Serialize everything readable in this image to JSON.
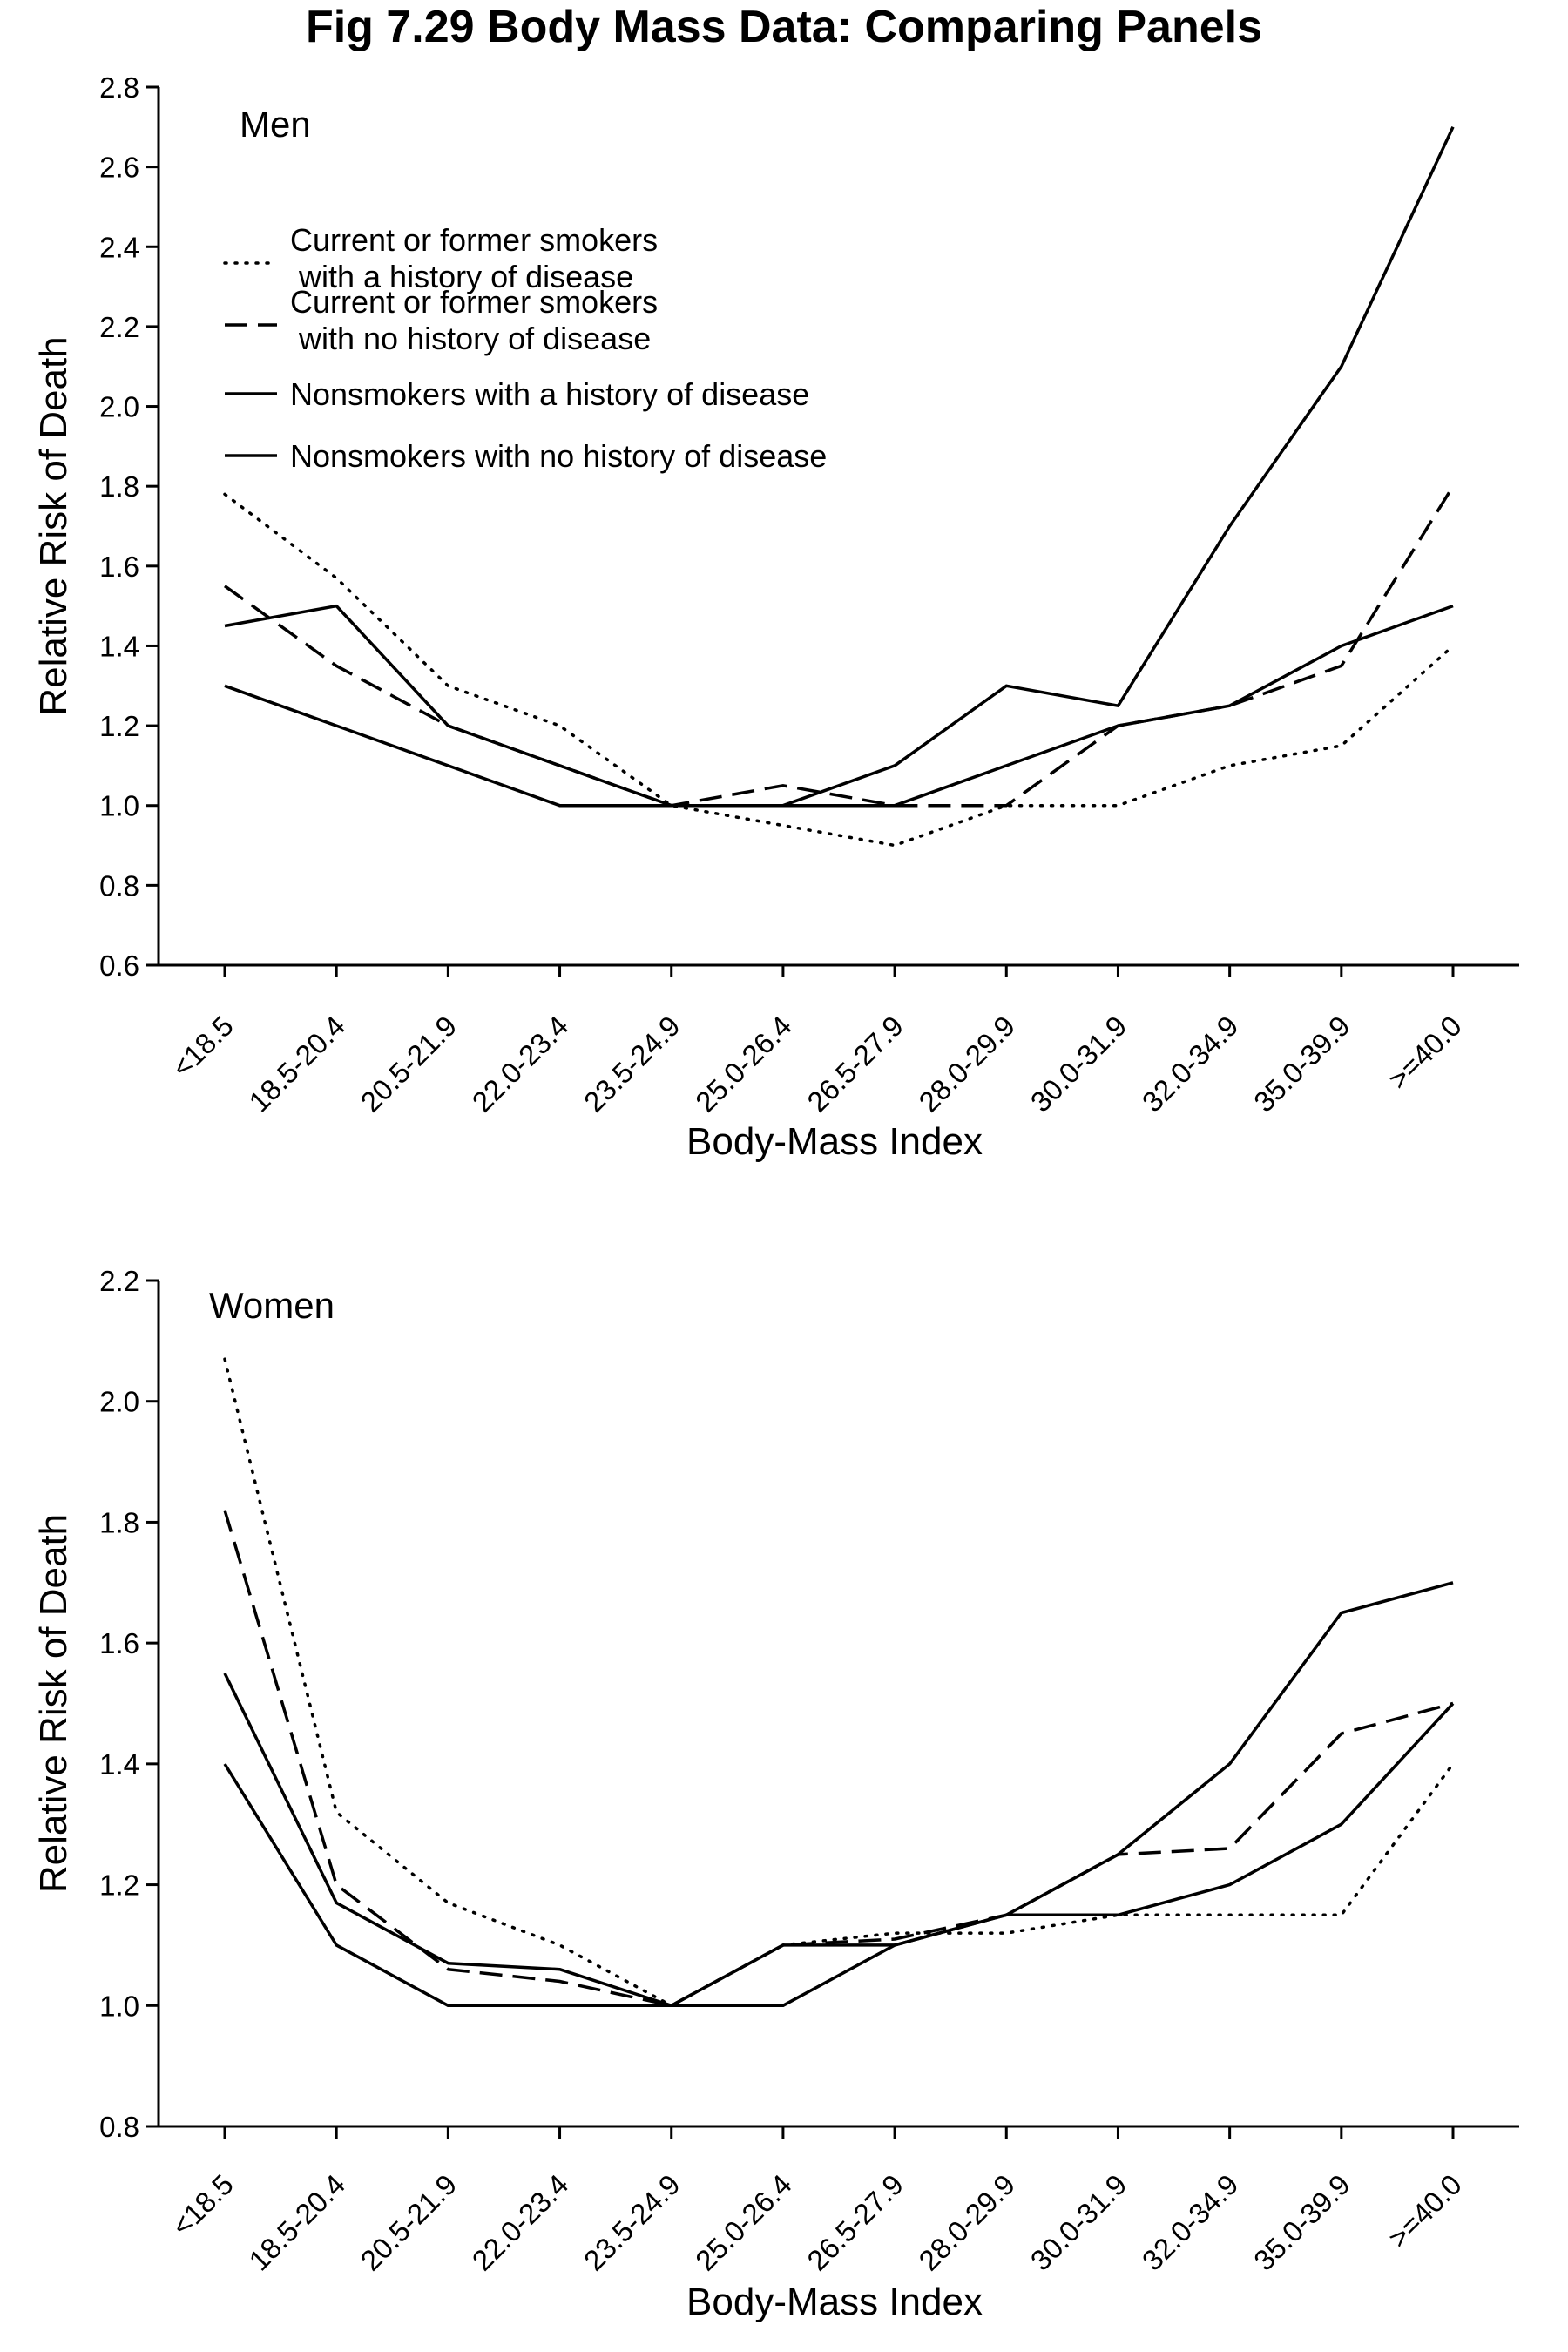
{
  "figure": {
    "title": "Fig 7.29 Body Mass Data: Comparing Panels"
  },
  "chart_data": [
    {
      "type": "line",
      "panel_label": "Men",
      "xlabel": "Body-Mass Index",
      "ylabel": "Relative Risk of Death",
      "categories": [
        "<18.5",
        "18.5-20.4",
        "20.5-21.9",
        "22.0-23.4",
        "23.5-24.9",
        "25.0-26.4",
        "26.5-27.9",
        "28.0-29.9",
        "30.0-31.9",
        "32.0-34.9",
        "35.0-39.9",
        ">=40.0"
      ],
      "ylim": [
        0.6,
        2.8
      ],
      "yticks": [
        "0.6",
        "0.8",
        "1.0",
        "1.2",
        "1.4",
        "1.6",
        "1.8",
        "2.0",
        "2.2",
        "2.4",
        "2.6",
        "2.8"
      ],
      "grid": false,
      "legend": {
        "placement": "top-left",
        "entries": [
          {
            "line1": "Current or former smokers",
            "line2": "with a history of disease",
            "style": "dotted"
          },
          {
            "line1": "Current or former smokers",
            "line2": "with no history of disease",
            "style": "dashed"
          },
          {
            "line1": "Nonsmokers with a history of disease",
            "line2": "",
            "style": "solid"
          },
          {
            "line1": "Nonsmokers with no history of disease",
            "line2": "",
            "style": "solid"
          }
        ]
      },
      "series": [
        {
          "style": "dotted",
          "values": [
            1.78,
            1.57,
            1.3,
            1.2,
            1.0,
            0.95,
            0.9,
            1.0,
            1.0,
            1.1,
            1.15,
            1.4
          ]
        },
        {
          "style": "dashed",
          "values": [
            1.55,
            1.35,
            1.2,
            1.1,
            1.0,
            1.05,
            1.0,
            1.0,
            1.2,
            1.25,
            1.35,
            1.8
          ]
        },
        {
          "style": "solid",
          "values": [
            1.45,
            1.5,
            1.2,
            1.1,
            1.0,
            1.0,
            1.1,
            1.3,
            1.25,
            1.7,
            2.1,
            2.7
          ]
        },
        {
          "style": "solid",
          "values": [
            1.3,
            1.2,
            1.1,
            1.0,
            1.0,
            1.0,
            1.0,
            1.1,
            1.2,
            1.25,
            1.4,
            1.5
          ]
        }
      ]
    },
    {
      "type": "line",
      "panel_label": "Women",
      "xlabel": "Body-Mass Index",
      "ylabel": "Relative Risk of Death",
      "categories": [
        "<18.5",
        "18.5-20.4",
        "20.5-21.9",
        "22.0-23.4",
        "23.5-24.9",
        "25.0-26.4",
        "26.5-27.9",
        "28.0-29.9",
        "30.0-31.9",
        "32.0-34.9",
        "35.0-39.9",
        ">=40.0"
      ],
      "ylim": [
        0.8,
        2.2
      ],
      "yticks": [
        "0.8",
        "1.0",
        "1.2",
        "1.4",
        "1.6",
        "1.8",
        "2.0",
        "2.2"
      ],
      "grid": false,
      "series": [
        {
          "style": "dotted",
          "values": [
            2.07,
            1.32,
            1.17,
            1.1,
            1.0,
            1.1,
            1.12,
            1.12,
            1.15,
            1.15,
            1.15,
            1.4
          ]
        },
        {
          "style": "dashed",
          "values": [
            1.82,
            1.2,
            1.06,
            1.04,
            1.0,
            1.1,
            1.11,
            1.15,
            1.25,
            1.26,
            1.45,
            1.5
          ]
        },
        {
          "style": "solid",
          "values": [
            1.55,
            1.17,
            1.07,
            1.06,
            1.0,
            1.1,
            1.1,
            1.15,
            1.25,
            1.4,
            1.65,
            1.7
          ]
        },
        {
          "style": "solid",
          "values": [
            1.4,
            1.1,
            1.0,
            1.0,
            1.0,
            1.0,
            1.1,
            1.15,
            1.15,
            1.2,
            1.3,
            1.5
          ]
        }
      ]
    }
  ]
}
